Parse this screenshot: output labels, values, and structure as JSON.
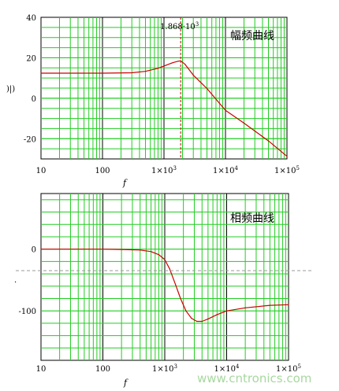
{
  "colors": {
    "grid_minor": "#22cc22",
    "grid_major": "#000000",
    "curve": "#cc0000",
    "marker": "#cc0000",
    "dashed_line": "#9a9a9a",
    "watermark": "#a8d8a0"
  },
  "chart_data": [
    {
      "type": "line",
      "title": "幅频曲线",
      "xlabel": "f",
      "ylabel": ")|)",
      "x_scale": "log",
      "xlim": [
        10,
        100000
      ],
      "ylim": [
        -30,
        40
      ],
      "x_tick_labels": [
        "10",
        "100",
        "1×10",
        "1×10",
        "1×10"
      ],
      "x_tick_exps": [
        "",
        "",
        "3",
        "4",
        "5"
      ],
      "y_tick_labels": [
        "40",
        "20",
        "0",
        "-20"
      ],
      "y_ticks": [
        40,
        20,
        0,
        -20
      ],
      "annotation": {
        "text": "1.868·10",
        "exp": "3",
        "x": 1868
      },
      "grid": true,
      "series": [
        {
          "x": [
            10,
            100,
            300,
            500,
            800,
            1100,
            1400,
            1700,
            1868,
            2200,
            3000,
            5000,
            10000,
            20000,
            50000,
            100000
          ],
          "values": [
            12.4,
            12.4,
            12.6,
            13.3,
            14.8,
            16.4,
            17.6,
            18.3,
            18.5,
            16.8,
            11.4,
            4.8,
            -6.0,
            -12.3,
            -21.1,
            -28.7
          ]
        }
      ]
    },
    {
      "type": "line",
      "title": "相频曲线",
      "xlabel": "f",
      "x_scale": "log",
      "xlim": [
        10,
        100000
      ],
      "ylim": [
        -180,
        90
      ],
      "x_tick_labels": [
        "10",
        "100",
        "1×10",
        "1×10",
        "1×10"
      ],
      "x_tick_exps": [
        "",
        "",
        "3",
        "4",
        "5"
      ],
      "y_tick_labels": [
        "0",
        "-100"
      ],
      "y_ticks": [
        0,
        -100
      ],
      "grid": true,
      "series": [
        {
          "x": [
            10,
            100,
            200,
            400,
            600,
            800,
            1000,
            1200,
            1500,
            1800,
            2200,
            2700,
            3300,
            4000,
            5000,
            7000,
            10000,
            20000,
            50000,
            100000
          ],
          "values": [
            0,
            0,
            -0.5,
            -1.5,
            -4,
            -9,
            -17,
            -32,
            -58,
            -80,
            -100,
            -112,
            -117,
            -117,
            -113,
            -106,
            -100,
            -95,
            -91,
            -90
          ]
        }
      ]
    }
  ],
  "watermark": "www.cntronics.com",
  "margin_mark": "·"
}
